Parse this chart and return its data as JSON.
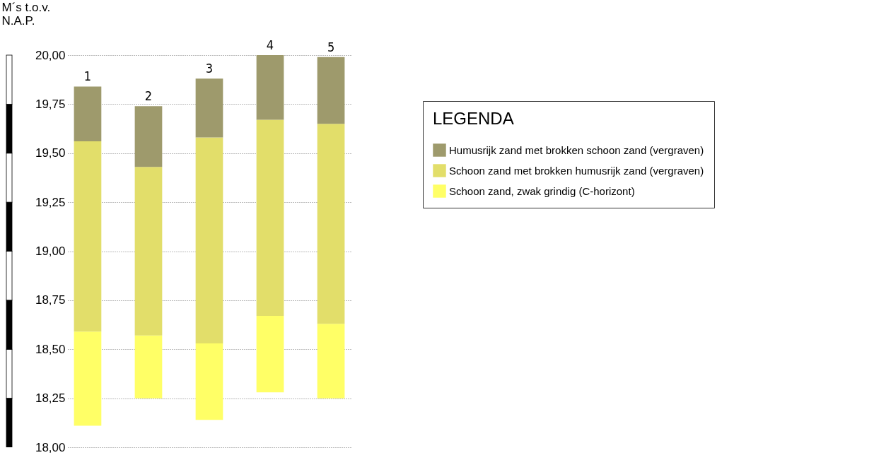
{
  "chart_data": {
    "type": "bar",
    "ylabel": "M´s t.o.v. N.A.P.",
    "legend_title": "LEGENDA",
    "categories": [
      "1",
      "2",
      "3",
      "4",
      "5"
    ],
    "series": [
      {
        "name": "Schoon zand, zwak grindig (C-horizont)",
        "color": "#ffff66",
        "base": [
          18.11,
          18.25,
          18.14,
          18.28,
          18.25
        ],
        "values": [
          0.48,
          0.32,
          0.39,
          0.39,
          0.38
        ]
      },
      {
        "name": "Schoon zand met brokken humusrijk zand (vergraven)",
        "color": "#e2de6a",
        "base": [
          18.59,
          18.57,
          18.53,
          18.67,
          18.63
        ],
        "values": [
          0.97,
          0.86,
          1.05,
          1.0,
          1.02
        ]
      },
      {
        "name": "Humusrijk zand met brokken schoon zand (vergraven)",
        "color": "#9e9a6c",
        "base": [
          19.56,
          19.43,
          19.58,
          19.67,
          19.65
        ],
        "values": [
          0.28,
          0.31,
          0.3,
          0.33,
          0.34
        ]
      }
    ],
    "ylim": [
      18,
      20
    ],
    "yticks": [
      {
        "value": 18,
        "label": "18,00"
      },
      {
        "value": 18.25,
        "label": "18,25"
      },
      {
        "value": 18.5,
        "label": "18,50"
      },
      {
        "value": 18.75,
        "label": "18,75"
      },
      {
        "value": 19,
        "label": "19,00"
      },
      {
        "value": 19.25,
        "label": "19,25"
      },
      {
        "value": 19.5,
        "label": "19,50"
      },
      {
        "value": 19.75,
        "label": "19,75"
      },
      {
        "value": 20,
        "label": "20,00"
      }
    ],
    "grid": "y",
    "legend": "top right",
    "tick_labels": "y"
  }
}
